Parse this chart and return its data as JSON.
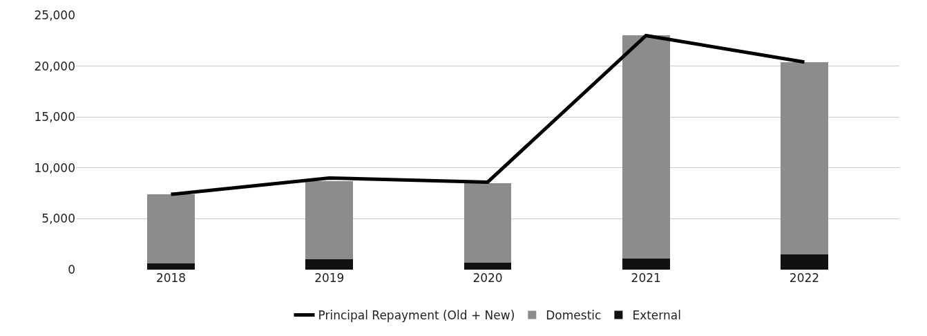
{
  "chart_data": {
    "type": "bar",
    "stacked": true,
    "categories": [
      "2018",
      "2019",
      "2020",
      "2021",
      "2022"
    ],
    "series": [
      {
        "name": "External",
        "color": "#111111",
        "values": [
          600,
          1000,
          700,
          1100,
          1500
        ]
      },
      {
        "name": "Domestic",
        "color": "#8c8c8c",
        "values": [
          6800,
          7700,
          7800,
          21900,
          18900
        ]
      },
      {
        "name": "Principal Repayment (Old + New)",
        "type": "line",
        "color": "#000000",
        "values": [
          7400,
          9000,
          8600,
          23000,
          20400
        ]
      }
    ],
    "ylim": [
      0,
      25000
    ],
    "yticks": [
      {
        "value": 0,
        "label": "0"
      },
      {
        "value": 5000,
        "label": "5,000"
      },
      {
        "value": 10000,
        "label": "10,000"
      },
      {
        "value": 15000,
        "label": "15,000"
      },
      {
        "value": 20000,
        "label": "20,000"
      },
      {
        "value": 25000,
        "label": "25,000"
      }
    ],
    "grid": "y",
    "legend": "bottom"
  }
}
